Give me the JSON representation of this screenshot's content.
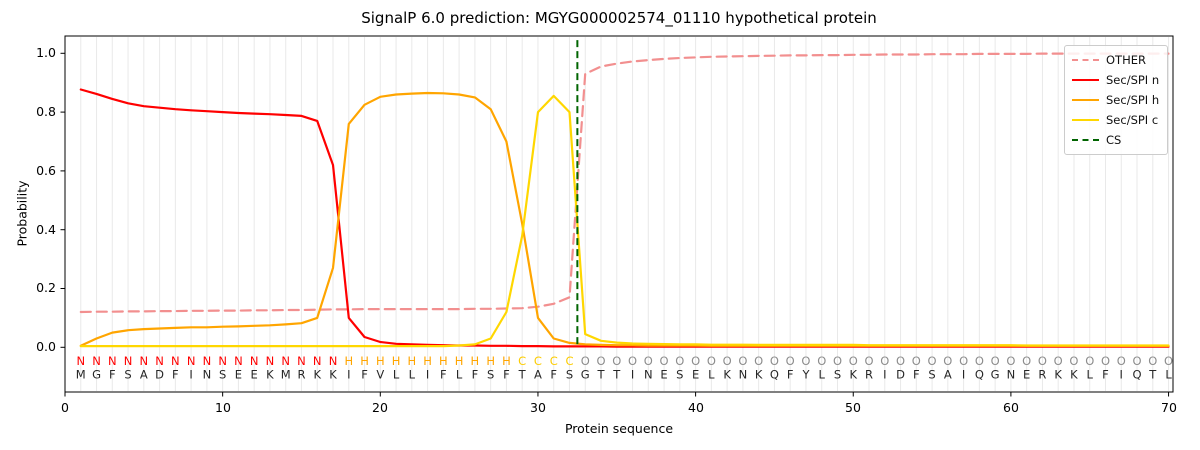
{
  "title": "SignalP 6.0 prediction: MGYG000002574_01110 hypothetical protein",
  "chart_data": {
    "type": "line",
    "title": "SignalP 6.0 prediction: MGYG000002574_01110 hypothetical protein",
    "xlabel": "Protein sequence",
    "ylabel": "Probability",
    "xlim": [
      0,
      70.3
    ],
    "ylim": [
      -0.152,
      1.059
    ],
    "grid": "light vertical gridline at every residue position 1-70",
    "legend_position": "upper right",
    "x_ticks": [
      0,
      10,
      20,
      30,
      40,
      50,
      60,
      70
    ],
    "x_tick_labels": [
      "0",
      "10",
      "20",
      "30",
      "40",
      "50",
      "60",
      "70"
    ],
    "y_ticks": [
      0.0,
      0.2,
      0.4,
      0.6,
      0.8,
      1.0
    ],
    "y_tick_labels": [
      "0.0",
      "0.2",
      "0.4",
      "0.6",
      "0.8",
      "1.0"
    ],
    "x_description": "one value per residue, positions 1 through 70",
    "series": [
      {
        "name": "OTHER",
        "color": "#f28f8f",
        "dash": true,
        "values": [
          0.12,
          0.121,
          0.121,
          0.122,
          0.122,
          0.123,
          0.123,
          0.124,
          0.124,
          0.125,
          0.125,
          0.126,
          0.126,
          0.127,
          0.127,
          0.128,
          0.129,
          0.129,
          0.13,
          0.13,
          0.13,
          0.13,
          0.13,
          0.13,
          0.13,
          0.131,
          0.131,
          0.132,
          0.133,
          0.138,
          0.148,
          0.17,
          0.93,
          0.955,
          0.965,
          0.972,
          0.977,
          0.981,
          0.984,
          0.986,
          0.988,
          0.989,
          0.99,
          0.991,
          0.992,
          0.993,
          0.993,
          0.994,
          0.994,
          0.995,
          0.995,
          0.996,
          0.996,
          0.996,
          0.997,
          0.997,
          0.997,
          0.998,
          0.998,
          0.998,
          0.998,
          0.999,
          0.999,
          0.999,
          0.999,
          0.999,
          0.999,
          0.999,
          0.999,
          0.999
        ]
      },
      {
        "name": "Sec/SPI n",
        "color": "#ff0000",
        "dash": false,
        "values": [
          0.877,
          0.862,
          0.845,
          0.83,
          0.82,
          0.815,
          0.81,
          0.806,
          0.803,
          0.8,
          0.797,
          0.795,
          0.793,
          0.79,
          0.787,
          0.77,
          0.62,
          0.1,
          0.035,
          0.018,
          0.012,
          0.01,
          0.008,
          0.007,
          0.006,
          0.006,
          0.005,
          0.005,
          0.004,
          0.004,
          0.003,
          0.003,
          0.003,
          0.003,
          0.002,
          0.002,
          0.002,
          0.002,
          0.002,
          0.002,
          0.002,
          0.002,
          0.002,
          0.002,
          0.002,
          0.002,
          0.002,
          0.002,
          0.002,
          0.002,
          0.002,
          0.002,
          0.002,
          0.002,
          0.002,
          0.002,
          0.002,
          0.002,
          0.002,
          0.002,
          0.002,
          0.002,
          0.002,
          0.002,
          0.002,
          0.002,
          0.002,
          0.002,
          0.002,
          0.002
        ]
      },
      {
        "name": "Sec/SPI h",
        "color": "#ffa500",
        "dash": false,
        "values": [
          0.005,
          0.03,
          0.05,
          0.058,
          0.062,
          0.064,
          0.066,
          0.068,
          0.068,
          0.07,
          0.071,
          0.073,
          0.075,
          0.078,
          0.082,
          0.1,
          0.27,
          0.76,
          0.825,
          0.852,
          0.86,
          0.863,
          0.865,
          0.864,
          0.86,
          0.85,
          0.81,
          0.7,
          0.42,
          0.1,
          0.03,
          0.015,
          0.01,
          0.008,
          0.007,
          0.007,
          0.006,
          0.006,
          0.006,
          0.006,
          0.005,
          0.005,
          0.005,
          0.005,
          0.005,
          0.005,
          0.005,
          0.005,
          0.005,
          0.005,
          0.005,
          0.005,
          0.005,
          0.005,
          0.005,
          0.005,
          0.005,
          0.005,
          0.005,
          0.005,
          0.005,
          0.005,
          0.005,
          0.005,
          0.005,
          0.005,
          0.005,
          0.005,
          0.005,
          0.005
        ]
      },
      {
        "name": "Sec/SPI c",
        "color": "#ffd700",
        "dash": false,
        "values": [
          0.004,
          0.004,
          0.004,
          0.004,
          0.004,
          0.004,
          0.004,
          0.004,
          0.004,
          0.004,
          0.004,
          0.004,
          0.004,
          0.004,
          0.004,
          0.004,
          0.004,
          0.004,
          0.004,
          0.004,
          0.004,
          0.004,
          0.004,
          0.004,
          0.006,
          0.01,
          0.03,
          0.12,
          0.38,
          0.8,
          0.855,
          0.8,
          0.045,
          0.022,
          0.016,
          0.013,
          0.012,
          0.011,
          0.01,
          0.01,
          0.009,
          0.009,
          0.009,
          0.008,
          0.008,
          0.008,
          0.008,
          0.008,
          0.008,
          0.008,
          0.007,
          0.007,
          0.007,
          0.007,
          0.007,
          0.007,
          0.007,
          0.007,
          0.007,
          0.007,
          0.006,
          0.006,
          0.006,
          0.006,
          0.006,
          0.006,
          0.006,
          0.006,
          0.006,
          0.006
        ]
      }
    ],
    "cs_marker": {
      "label": "CS",
      "x": 32.5,
      "color": "#006400",
      "dash": true,
      "note": "vertical dashed line between residues 32 and 33"
    },
    "legend": [
      {
        "label": "OTHER",
        "color": "#f28f8f",
        "dash": true
      },
      {
        "label": "Sec/SPI n",
        "color": "#ff0000",
        "dash": false
      },
      {
        "label": "Sec/SPI h",
        "color": "#ffa500",
        "dash": false
      },
      {
        "label": "Sec/SPI c",
        "color": "#ffd700",
        "dash": false
      },
      {
        "label": "CS",
        "color": "#006400",
        "dash": true
      }
    ],
    "sequence": "MGFSADFINSEEKMRKKIFVLLIFLFSFTAFSGTTINESELKNKQFYLSKRIDFSAIQGNERKKLFIQTL",
    "region_labels": "NNNNNNNNNNNNNNNNNHHHHHHHHHHHCCCCOOOOOOOOOOOOOOOOOOOOOOOOOOOOOOOOOOOOOO",
    "region_colors": {
      "N": "#ff0000",
      "H": "#ffa500",
      "C": "#fccc00",
      "O": "#8c8c8c"
    },
    "sequence_color": "#262626",
    "grid_color": "#e9e9e9",
    "spine_color": "#000000"
  }
}
